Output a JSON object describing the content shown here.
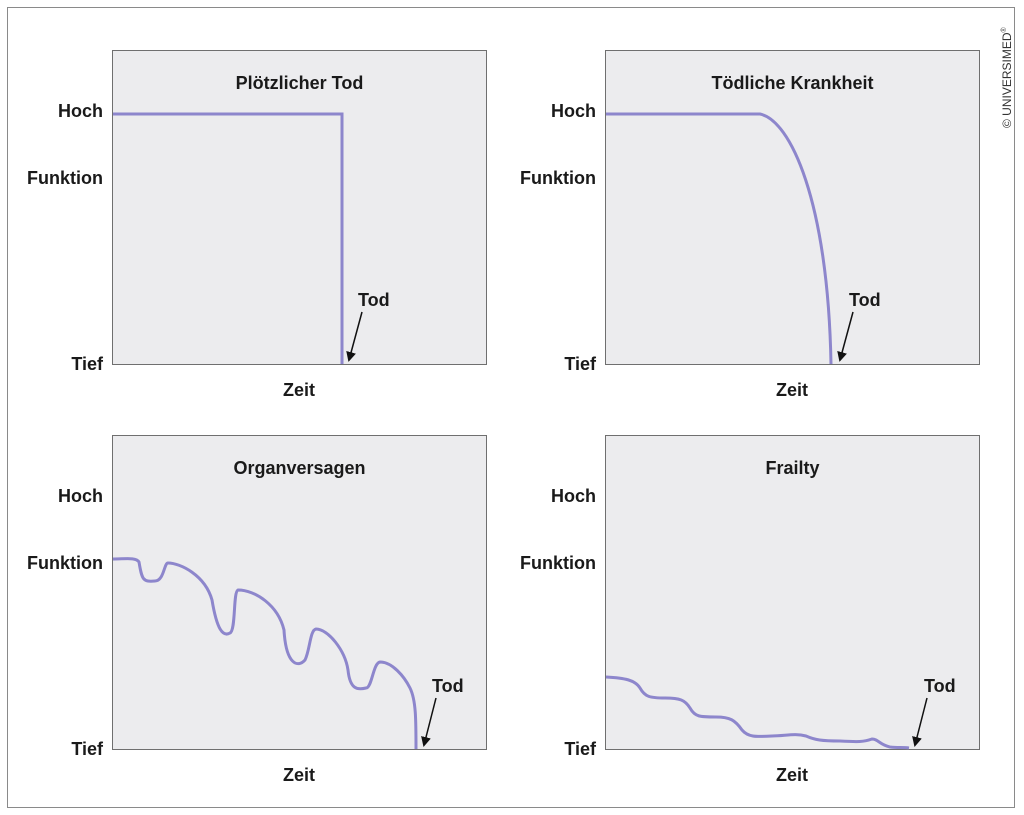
{
  "copyright": {
    "text": "© UNIVERSIMED",
    "mark": "®"
  },
  "panels": [
    {
      "title": "Plötzlicher Tod",
      "y_high": "Hoch",
      "y_mid": "Funktion",
      "y_low": "Tief",
      "x_label": "Zeit",
      "annotation": "Tod"
    },
    {
      "title": "Tödliche Krankheit",
      "y_high": "Hoch",
      "y_mid": "Funktion",
      "y_low": "Tief",
      "x_label": "Zeit",
      "annotation": "Tod"
    },
    {
      "title": "Organversagen",
      "y_high": "Hoch",
      "y_mid": "Funktion",
      "y_low": "Tief",
      "x_label": "Zeit",
      "annotation": "Tod"
    },
    {
      "title": "Frailty",
      "y_high": "Hoch",
      "y_mid": "Funktion",
      "y_low": "Tief",
      "x_label": "Zeit",
      "annotation": "Tod"
    }
  ],
  "colors": {
    "curve": "#8d86cc",
    "panel_bg": "#ececee",
    "arrow": "#111111"
  }
}
